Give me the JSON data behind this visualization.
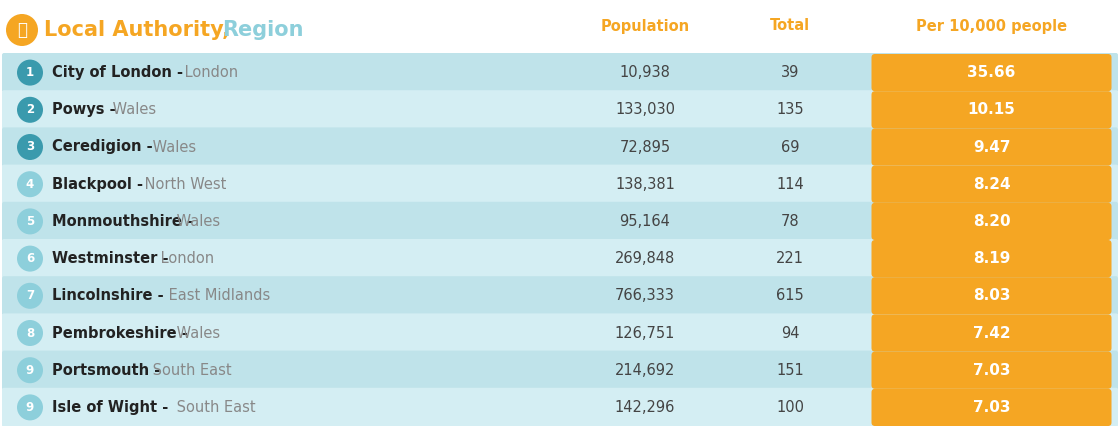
{
  "title_authority": "Local Authority,",
  "title_region": " Region",
  "col_population": "Population",
  "col_total": "Total",
  "col_per": "Per 10,000 people",
  "rows": [
    {
      "rank": "1",
      "authority": "City of London",
      "region": "London",
      "population": "10,938",
      "total": "39",
      "per": "35.66",
      "rank_dark": true
    },
    {
      "rank": "2",
      "authority": "Powys",
      "region": "Wales",
      "population": "133,030",
      "total": "135",
      "per": "10.15",
      "rank_dark": true
    },
    {
      "rank": "3",
      "authority": "Ceredigion",
      "region": "Wales",
      "population": "72,895",
      "total": "69",
      "per": "9.47",
      "rank_dark": true
    },
    {
      "rank": "4",
      "authority": "Blackpool",
      "region": "North West",
      "population": "138,381",
      "total": "114",
      "per": "8.24",
      "rank_dark": false
    },
    {
      "rank": "5",
      "authority": "Monmouthshire",
      "region": "Wales",
      "population": "95,164",
      "total": "78",
      "per": "8.20",
      "rank_dark": false
    },
    {
      "rank": "6",
      "authority": "Westminster",
      "region": "London",
      "population": "269,848",
      "total": "221",
      "per": "8.19",
      "rank_dark": false
    },
    {
      "rank": "7",
      "authority": "Lincolnshire",
      "region": "East Midlands",
      "population": "766,333",
      "total": "615",
      "per": "8.03",
      "rank_dark": false
    },
    {
      "rank": "8",
      "authority": "Pembrokeshire",
      "region": "Wales",
      "population": "126,751",
      "total": "94",
      "per": "7.42",
      "rank_dark": false
    },
    {
      "rank": "9",
      "authority": "Portsmouth",
      "region": "South East",
      "population": "214,692",
      "total": "151",
      "per": "7.03",
      "rank_dark": false
    },
    {
      "rank": "9",
      "authority": "Isle of Wight",
      "region": "South East",
      "population": "142,296",
      "total": "100",
      "per": "7.03",
      "rank_dark": false
    }
  ],
  "color_orange": "#F5A623",
  "color_dark_teal": "#3A9AAD",
  "color_light_teal": "#8DCFDB",
  "color_row_even": "#BFE3EA",
  "color_row_odd": "#D4EEF3",
  "color_bg": "#FFFFFF",
  "color_authority_text": "#222222",
  "color_region_text": "#888888",
  "color_header_orange": "#F5A623",
  "color_number_text": "#444444",
  "figwidth": 11.2,
  "figheight": 4.26,
  "dpi": 100
}
